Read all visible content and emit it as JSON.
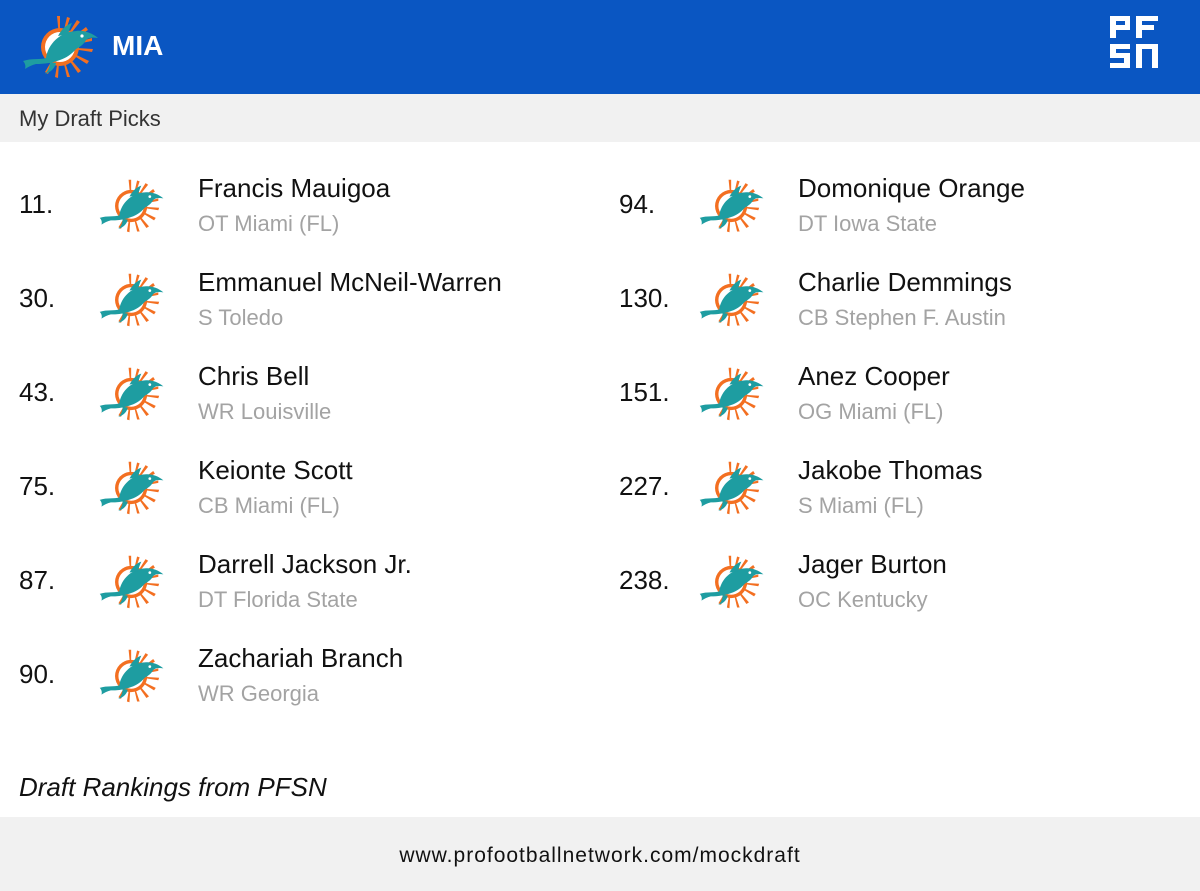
{
  "header": {
    "team_abbr": "MIA",
    "team_logo_icon": "miami-dolphins-logo",
    "brand_logo_icon": "pfsn-logo",
    "colors": {
      "header_bg": "#0a56c2",
      "aqua": "#1e9da1",
      "orange": "#f36f21"
    }
  },
  "subheader": {
    "title": "My Draft Picks"
  },
  "picks": [
    {
      "number": "11.",
      "name": "Francis Mauigoa",
      "detail": "OT Miami (FL)"
    },
    {
      "number": "30.",
      "name": "Emmanuel McNeil-Warren",
      "detail": "S Toledo"
    },
    {
      "number": "43.",
      "name": "Chris Bell",
      "detail": "WR Louisville"
    },
    {
      "number": "75.",
      "name": "Keionte Scott",
      "detail": "CB Miami (FL)"
    },
    {
      "number": "87.",
      "name": "Darrell Jackson Jr.",
      "detail": "DT Florida State"
    },
    {
      "number": "90.",
      "name": "Zachariah Branch",
      "detail": "WR Georgia"
    },
    {
      "number": "94.",
      "name": "Domonique Orange",
      "detail": "DT Iowa State"
    },
    {
      "number": "130.",
      "name": "Charlie Demmings",
      "detail": "CB Stephen F. Austin"
    },
    {
      "number": "151.",
      "name": "Anez Cooper",
      "detail": "OG Miami (FL)"
    },
    {
      "number": "227.",
      "name": "Jakobe Thomas",
      "detail": "S Miami (FL)"
    },
    {
      "number": "238.",
      "name": "Jager Burton",
      "detail": "OC Kentucky"
    }
  ],
  "source_note": "Draft Rankings from PFSN",
  "footer": {
    "url": "www.profootballnetwork.com/mockdraft"
  }
}
